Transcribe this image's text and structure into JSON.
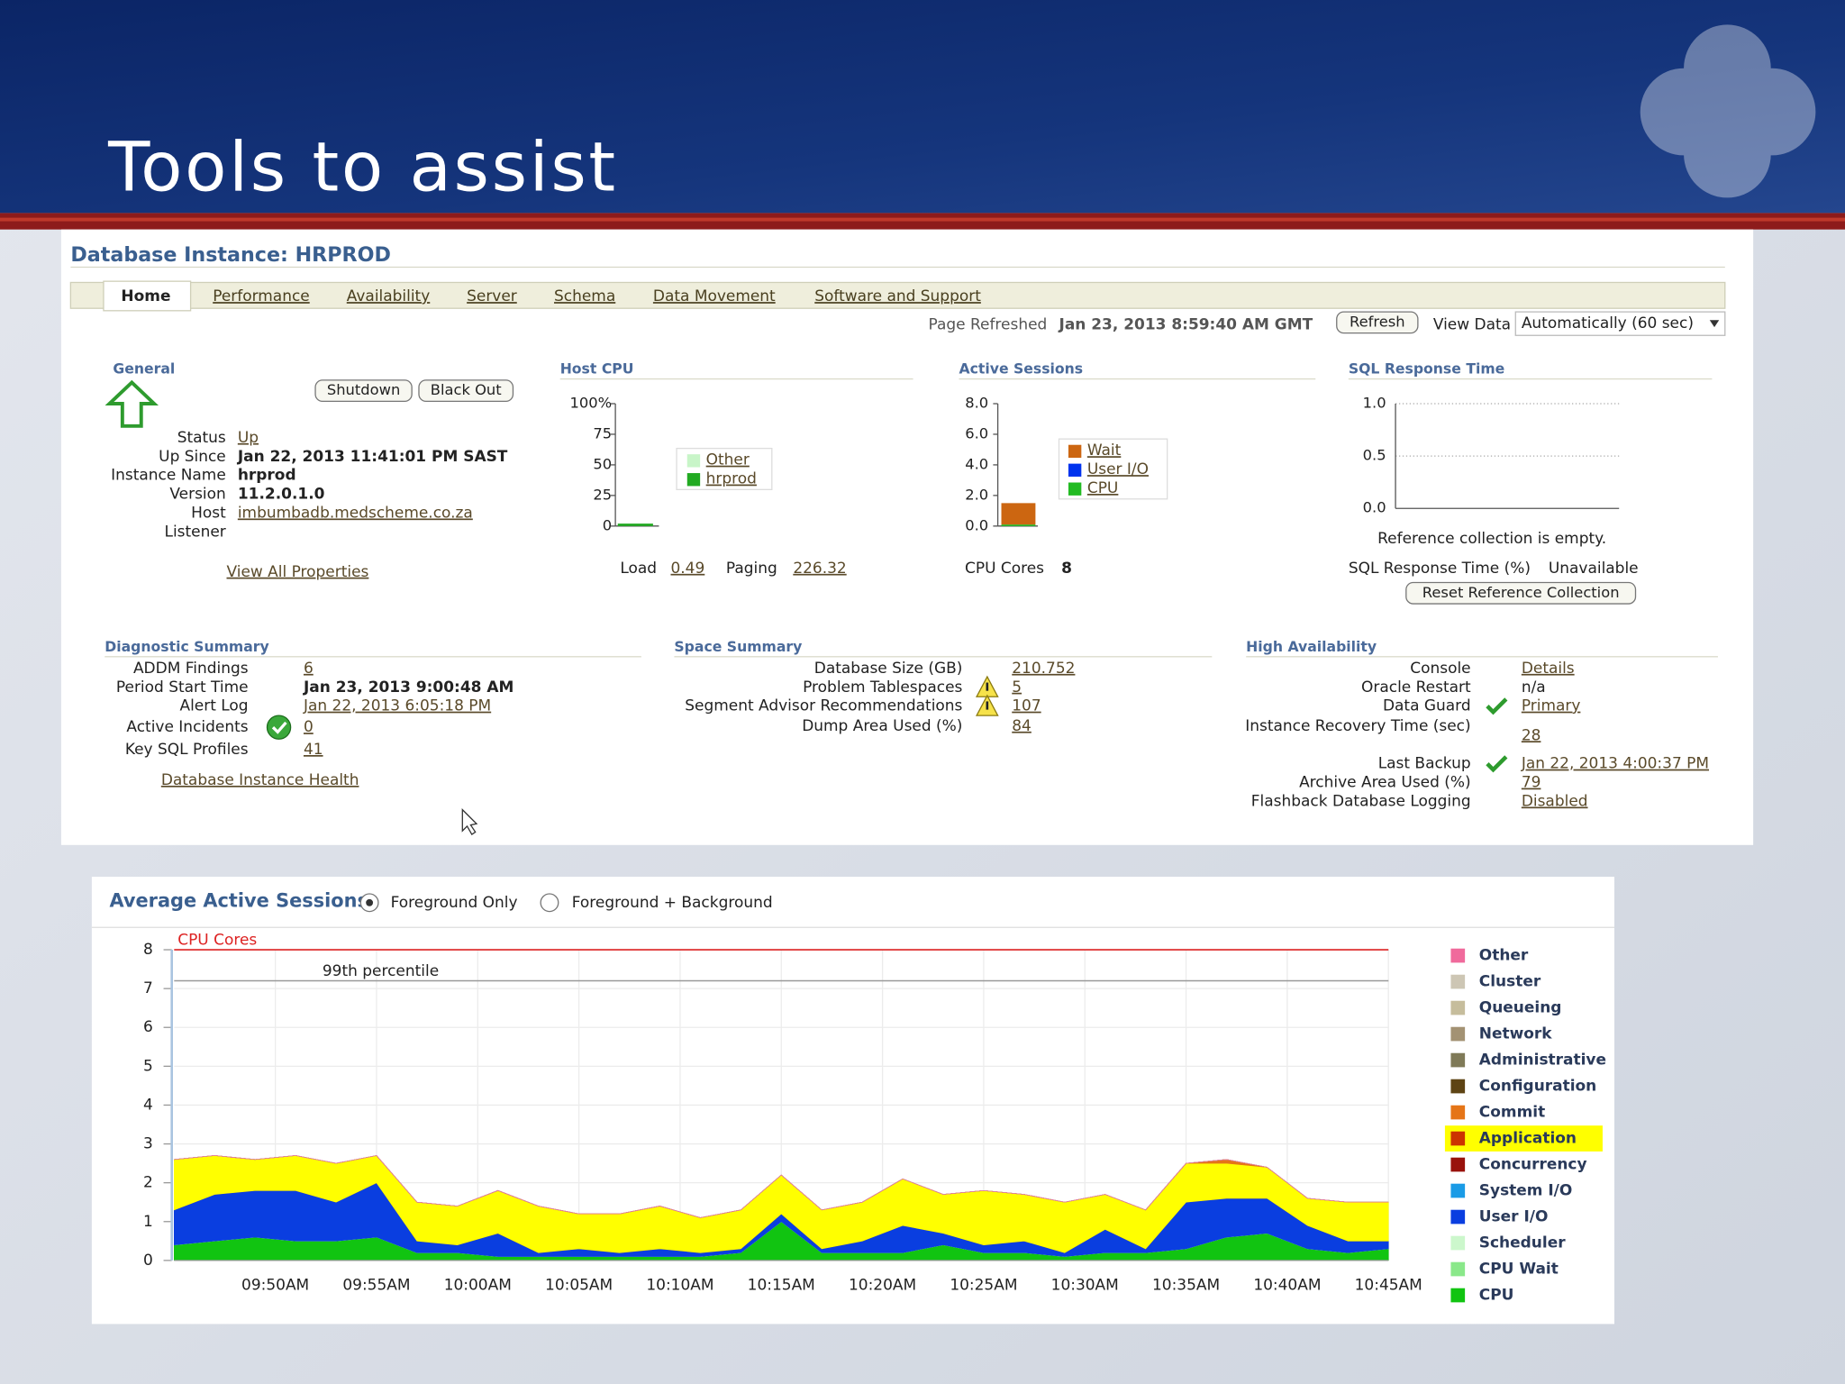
{
  "slide_title": "Tools to assist",
  "page_title": "Database Instance: HRPROD",
  "tabs": [
    "Home",
    "Performance",
    "Availability",
    "Server",
    "Schema",
    "Data Movement",
    "Software and Support"
  ],
  "refresh": {
    "label": "Page Refreshed",
    "time": "Jan 23, 2013 8:59:40 AM GMT",
    "button": "Refresh",
    "view_label": "View Data",
    "view_value": "Automatically (60 sec)"
  },
  "general": {
    "heading": "General",
    "buttons": [
      "Shutdown",
      "Black Out"
    ],
    "fields": [
      {
        "label": "Status",
        "value": "Up",
        "link": true
      },
      {
        "label": "Up Since",
        "value": "Jan 22, 2013 11:41:01 PM SAST",
        "bold": true
      },
      {
        "label": "Instance Name",
        "value": "hrprod",
        "bold": true
      },
      {
        "label": "Version",
        "value": "11.2.0.1.0",
        "bold": true
      },
      {
        "label": "Host",
        "value": "imbumbadb.medscheme.co.za",
        "link": true
      },
      {
        "label": "Listener"
      }
    ],
    "link": "View All Properties"
  },
  "host_cpu": {
    "type": "bar",
    "heading": "Host CPU",
    "ylim": [
      0,
      100
    ],
    "yticks": [
      {
        "value": 100,
        "label": "100%"
      },
      75,
      50,
      25,
      0
    ],
    "series": [
      {
        "name": "Other",
        "color": "#c8f5c8",
        "values": [
          0
        ]
      },
      {
        "name": "hrprod",
        "color": "#22aa22",
        "values": [
          2
        ]
      }
    ],
    "load_label": "Load",
    "load": 0.49,
    "paging_label": "Paging",
    "paging": 226.32
  },
  "active_sessions": {
    "type": "bar",
    "heading": "Active Sessions",
    "ylim": [
      0,
      8
    ],
    "yticks": [
      {
        "value": 8,
        "label": "8.0"
      },
      {
        "value": 6,
        "label": "6.0"
      },
      {
        "value": 4,
        "label": "4.0"
      },
      {
        "value": 2,
        "label": "2.0"
      },
      {
        "value": 0,
        "label": "0.0"
      }
    ],
    "series": [
      {
        "name": "Wait",
        "color": "#cc6611",
        "values": [
          1.4
        ]
      },
      {
        "name": "User I/O",
        "color": "#0033ee",
        "values": [
          0
        ]
      },
      {
        "name": "CPU",
        "color": "#22bb22",
        "values": [
          0.1
        ]
      }
    ],
    "cpu_cores_label": "CPU Cores",
    "cpu_cores": 8
  },
  "sql_response": {
    "heading": "SQL Response Time",
    "ylim": [
      0,
      1
    ],
    "yticks": [
      {
        "value": 1,
        "label": "1.0"
      },
      {
        "value": 0.5,
        "label": "0.5"
      },
      {
        "value": 0,
        "label": "0.0"
      }
    ],
    "message": "Reference collection is empty.",
    "status_label": "SQL Response Time (%)",
    "status": "Unavailable",
    "button": "Reset Reference Collection"
  },
  "diagnostic_summary": {
    "heading": "Diagnostic Summary",
    "fields": [
      {
        "label": "ADDM Findings",
        "value": 6,
        "link": true
      },
      {
        "label": "Period Start Time",
        "value": "Jan 23, 2013 9:00:48 AM",
        "bold": true
      },
      {
        "label": "Alert Log",
        "value": "Jan 22, 2013 6:05:18 PM",
        "link": true
      },
      {
        "label": "Active Incidents",
        "value": 0,
        "link": true,
        "icon": "ok"
      },
      {
        "label": "Key SQL Profiles",
        "value": 41,
        "link": true
      }
    ],
    "link": "Database Instance Health"
  },
  "space_summary": {
    "heading": "Space Summary",
    "fields": [
      {
        "label": "Database Size (GB)",
        "value": 210.752,
        "link": true
      },
      {
        "label": "Problem Tablespaces",
        "value": 5,
        "link": true,
        "icon": "warning"
      },
      {
        "label": "Segment Advisor Recommendations",
        "value": 107,
        "link": true,
        "icon": "warning"
      },
      {
        "label": "Dump Area Used (%)",
        "value": 84,
        "link": true
      }
    ]
  },
  "high_availability": {
    "heading": "High Availability",
    "fields": [
      {
        "label": "Console",
        "value": "Details",
        "link": true
      },
      {
        "label": "Oracle Restart",
        "value": "n/a"
      },
      {
        "label": "Data Guard",
        "value": "Primary",
        "link": true,
        "icon": "check"
      },
      {
        "label": "Instance Recovery Time (sec)",
        "value": 28,
        "link": true
      },
      {
        "label": "Last Backup",
        "value": "Jan 22, 2013 4:00:37 PM",
        "link": true,
        "icon": "check"
      },
      {
        "label": "Archive Area Used (%)",
        "value": 79,
        "link": true
      },
      {
        "label": "Flashback Database Logging",
        "value": "Disabled",
        "link": true
      }
    ]
  },
  "chart_data": {
    "type": "area",
    "title": "Average Active Sessions",
    "options": [
      "Foreground Only",
      "Foreground + Background"
    ],
    "selected_option": 0,
    "stacked": true,
    "x": [
      "09:45AM",
      "09:47AM",
      "09:49AM",
      "09:51AM",
      "09:53AM",
      "09:55AM",
      "09:57AM",
      "09:59AM",
      "10:01AM",
      "10:03AM",
      "10:05AM",
      "10:07AM",
      "10:09AM",
      "10:11AM",
      "10:13AM",
      "10:15AM",
      "10:17AM",
      "10:19AM",
      "10:21AM",
      "10:23AM",
      "10:25AM",
      "10:27AM",
      "10:29AM",
      "10:31AM",
      "10:33AM",
      "10:35AM",
      "10:37AM",
      "10:39AM",
      "10:41AM",
      "10:43AM",
      "10:45AM"
    ],
    "xlim": [
      "09:45AM",
      "10:45AM"
    ],
    "xticks": [
      "09:50AM",
      "09:55AM",
      "10:00AM",
      "10:05AM",
      "10:10AM",
      "10:15AM",
      "10:20AM",
      "10:25AM",
      "10:30AM",
      "10:35AM",
      "10:40AM",
      "10:45AM"
    ],
    "ylim": [
      0,
      8
    ],
    "yticks": [
      0,
      1,
      2,
      3,
      4,
      5,
      6,
      7,
      8
    ],
    "grid": true,
    "highlight_color": "#ffff00",
    "highlighted_series": 7,
    "reference_lines": [
      {
        "label": "CPU Cores",
        "value": 8,
        "color": "#dd2222"
      },
      {
        "label": "99th percentile",
        "value": 7.2,
        "color": "#999999"
      }
    ],
    "series": [
      {
        "name": "Other",
        "color": "#f06a9c",
        "values": [
          0,
          0,
          0,
          0,
          0,
          0,
          0,
          0,
          0,
          0,
          0,
          0,
          0,
          0,
          0,
          0,
          0,
          0,
          0,
          0,
          0,
          0,
          0,
          0,
          0,
          0,
          0,
          0,
          0,
          0,
          0
        ]
      },
      {
        "name": "Cluster",
        "color": "#cdc6b4",
        "values": [
          0,
          0,
          0,
          0,
          0,
          0,
          0,
          0,
          0,
          0,
          0,
          0,
          0,
          0,
          0,
          0,
          0,
          0,
          0,
          0,
          0,
          0,
          0,
          0,
          0,
          0,
          0,
          0,
          0,
          0,
          0
        ]
      },
      {
        "name": "Queueing",
        "color": "#c6bd9c",
        "values": [
          0,
          0,
          0,
          0,
          0,
          0,
          0,
          0,
          0,
          0,
          0,
          0,
          0,
          0,
          0,
          0,
          0,
          0,
          0,
          0,
          0,
          0,
          0,
          0,
          0,
          0,
          0,
          0,
          0,
          0,
          0
        ]
      },
      {
        "name": "Network",
        "color": "#a39273",
        "values": [
          0,
          0,
          0,
          0,
          0,
          0,
          0,
          0,
          0,
          0,
          0,
          0,
          0,
          0,
          0,
          0,
          0,
          0,
          0,
          0,
          0,
          0,
          0,
          0,
          0,
          0,
          0,
          0,
          0,
          0,
          0
        ]
      },
      {
        "name": "Administrative",
        "color": "#7f7a58",
        "values": [
          0,
          0,
          0,
          0,
          0,
          0,
          0,
          0,
          0,
          0,
          0,
          0,
          0,
          0,
          0,
          0,
          0,
          0,
          0,
          0,
          0,
          0,
          0,
          0,
          0,
          0,
          0,
          0,
          0,
          0,
          0
        ]
      },
      {
        "name": "Configuration",
        "color": "#5e4414",
        "values": [
          0,
          0,
          0,
          0,
          0,
          0,
          0,
          0,
          0,
          0,
          0,
          0,
          0,
          0,
          0,
          0,
          0,
          0,
          0,
          0,
          0,
          0,
          0,
          0,
          0,
          0,
          0,
          0,
          0,
          0,
          0
        ]
      },
      {
        "name": "Commit",
        "color": "#e57517",
        "values": [
          0,
          0,
          0,
          0,
          0,
          0,
          0,
          0,
          0,
          0,
          0,
          0,
          0,
          0,
          0,
          0,
          0,
          0,
          0,
          0,
          0,
          0,
          0,
          0,
          0,
          0,
          0.1,
          0,
          0,
          0,
          0
        ]
      },
      {
        "name": "Application",
        "color": "#cc3300",
        "values": [
          1.3,
          1.0,
          0.8,
          0.9,
          1.0,
          0.7,
          1.0,
          1.0,
          1.1,
          1.2,
          0.9,
          1.0,
          1.1,
          0.9,
          1.0,
          1.0,
          1.0,
          1.0,
          1.2,
          1.0,
          1.4,
          1.2,
          1.3,
          0.9,
          1.0,
          1.0,
          0.9,
          0.8,
          0.7,
          1.0,
          1.0
        ]
      },
      {
        "name": "Concurrency",
        "color": "#99120c",
        "values": [
          0,
          0,
          0,
          0,
          0,
          0,
          0,
          0,
          0,
          0,
          0,
          0,
          0,
          0,
          0,
          0,
          0,
          0,
          0,
          0,
          0,
          0,
          0,
          0,
          0,
          0,
          0,
          0,
          0,
          0,
          0
        ]
      },
      {
        "name": "System I/O",
        "color": "#1a9be6",
        "values": [
          0,
          0,
          0,
          0,
          0,
          0,
          0,
          0,
          0,
          0,
          0,
          0,
          0,
          0,
          0,
          0,
          0,
          0,
          0,
          0,
          0,
          0,
          0,
          0,
          0,
          0,
          0,
          0,
          0,
          0,
          0
        ]
      },
      {
        "name": "User I/O",
        "color": "#0a3ee0",
        "values": [
          0.9,
          1.2,
          1.2,
          1.3,
          1.0,
          1.4,
          0.3,
          0.2,
          0.6,
          0.1,
          0.2,
          0.1,
          0.2,
          0.1,
          0.1,
          0.2,
          0.1,
          0.3,
          0.7,
          0.3,
          0.2,
          0.3,
          0.1,
          0.6,
          0.1,
          1.2,
          1.0,
          0.9,
          0.6,
          0.3,
          0.2
        ]
      },
      {
        "name": "Scheduler",
        "color": "#ccf7cc",
        "values": [
          0,
          0,
          0,
          0,
          0,
          0,
          0,
          0,
          0,
          0,
          0,
          0,
          0,
          0,
          0,
          0,
          0,
          0,
          0,
          0,
          0,
          0,
          0,
          0,
          0,
          0,
          0,
          0,
          0,
          0,
          0
        ]
      },
      {
        "name": "CPU Wait",
        "color": "#8ae88a",
        "values": [
          0,
          0,
          0,
          0,
          0,
          0,
          0,
          0,
          0,
          0,
          0,
          0,
          0,
          0,
          0,
          0,
          0,
          0,
          0,
          0,
          0,
          0,
          0,
          0,
          0,
          0,
          0,
          0,
          0,
          0,
          0
        ]
      },
      {
        "name": "CPU",
        "color": "#11c411",
        "values": [
          0.4,
          0.5,
          0.6,
          0.5,
          0.5,
          0.6,
          0.2,
          0.2,
          0.1,
          0.1,
          0.1,
          0.1,
          0.1,
          0.1,
          0.2,
          1.0,
          0.2,
          0.2,
          0.2,
          0.4,
          0.2,
          0.2,
          0.1,
          0.2,
          0.2,
          0.3,
          0.6,
          0.7,
          0.3,
          0.2,
          0.3
        ]
      }
    ]
  }
}
